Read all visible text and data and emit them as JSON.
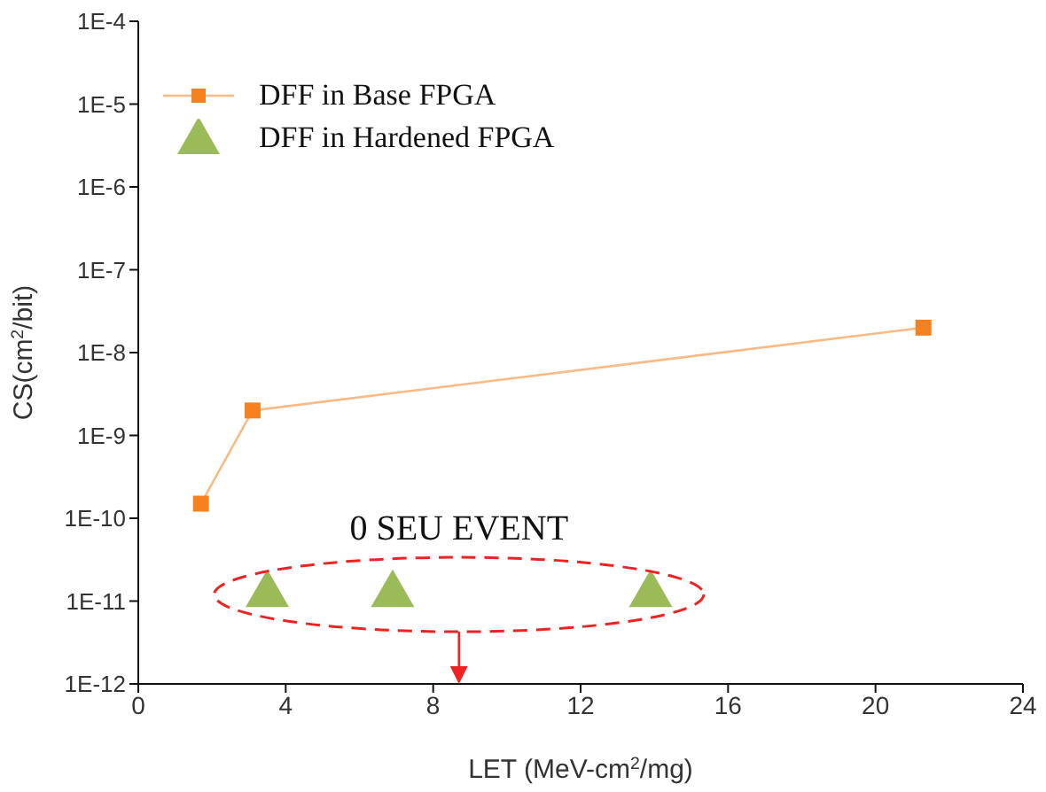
{
  "chart_data": {
    "type": "line",
    "xlabel": "LET (MeV-cm$^{2}$/mg)",
    "ylabel": "CS(cm$^{2}$/bit)",
    "annotations": [
      "0 SEU EVENT"
    ],
    "log": "y",
    "xlim": [
      0,
      24
    ],
    "xticks": [
      0,
      4,
      8,
      12,
      16,
      20,
      24
    ],
    "ylim": [
      1e-12,
      0.0001
    ],
    "yticks": [
      {
        "value": 1e-12,
        "label": "1E-12"
      },
      {
        "value": 1e-11,
        "label": "1E-11"
      },
      {
        "value": 1e-10,
        "label": "1E-10"
      },
      {
        "value": 1e-09,
        "label": "1E-9"
      },
      {
        "value": 1e-08,
        "label": "1E-8"
      },
      {
        "value": 1e-07,
        "label": "1E-7"
      },
      {
        "value": 1e-06,
        "label": "1E-6"
      },
      {
        "value": 1e-05,
        "label": "1E-5"
      },
      {
        "value": 0.0001,
        "label": "1E-4"
      }
    ],
    "grid": false,
    "legend": "top left",
    "series": [
      {
        "name": "DFF in Base FPGA",
        "type": "line",
        "marker": "square",
        "color": "#f5821f",
        "x": [
          1.7,
          3.1,
          21.3
        ],
        "values": [
          1.5e-10,
          2e-09,
          2e-08
        ]
      },
      {
        "name": "DFF in Hardened FPGA",
        "type": "scatter",
        "marker": "triangle",
        "color": "#9bbb59",
        "x": [
          3.5,
          6.9,
          13.9
        ],
        "values": [
          1.2e-11,
          1.2e-11,
          1.2e-11
        ]
      }
    ]
  }
}
